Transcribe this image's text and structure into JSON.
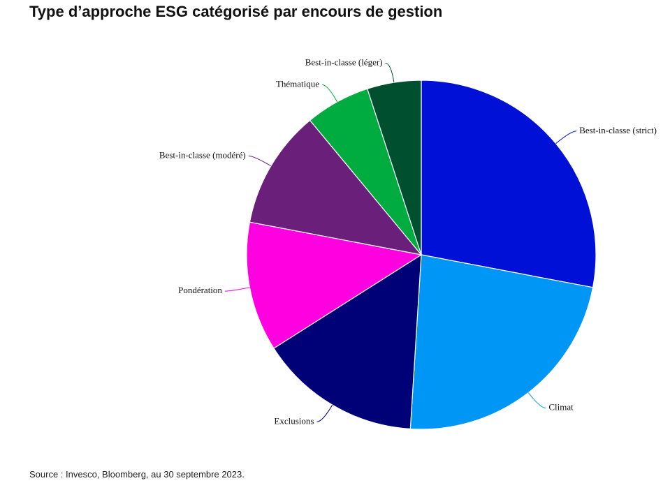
{
  "title": "Type d’approche ESG catégorisé par encours de gestion",
  "source": "Source : Invesco, Bloomberg, au 30 septembre 2023.",
  "chart_data": {
    "type": "pie",
    "categories": [
      "Best-in-classe (strict)",
      "Climat",
      "Exclusions",
      "Pondération",
      "Best-in-classe (modéré)",
      "Thématique",
      "Best-in-classe (léger)"
    ],
    "values": [
      28,
      23,
      15,
      12,
      11,
      6,
      5
    ],
    "colors": [
      "#0010d6",
      "#0096f5",
      "#000077",
      "#ff00e0",
      "#6a1f7a",
      "#00ab3f",
      "#005030"
    ]
  }
}
